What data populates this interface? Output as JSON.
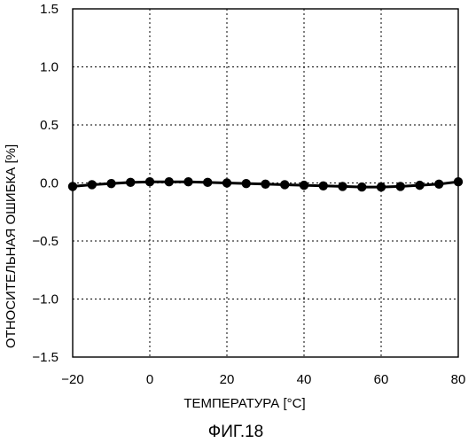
{
  "figure": {
    "caption": "ФИГ.18"
  },
  "chart_data": {
    "type": "line",
    "title": "",
    "xlabel": "ТЕМПЕРАТУРА [°C]",
    "ylabel": "ОТНОСИТЕЛЬНАЯ ОШИБКА [%]",
    "xlim": [
      -20,
      80
    ],
    "ylim": [
      -1.5,
      1.5
    ],
    "x_ticks": [
      -20,
      0,
      20,
      40,
      60,
      80
    ],
    "y_ticks": [
      1.5,
      1.0,
      0.5,
      0.0,
      -0.5,
      -1.0,
      -1.5
    ],
    "x_tick_labels": [
      "−20",
      "0",
      "20",
      "40",
      "60",
      "80"
    ],
    "y_tick_labels": [
      "1.5",
      "1.0",
      "0.5",
      "0.0",
      "−0.5",
      "−1.0",
      "−1.5"
    ],
    "grid": true,
    "legend": "none",
    "series": [
      {
        "x": [
          -20,
          -15,
          -10,
          -5,
          0,
          5,
          10,
          15,
          20,
          25,
          30,
          35,
          40,
          45,
          50,
          55,
          60,
          65,
          70,
          75,
          80
        ],
        "y": [
          -0.03,
          -0.015,
          -0.005,
          0.005,
          0.01,
          0.01,
          0.01,
          0.005,
          0.0,
          -0.005,
          -0.01,
          -0.015,
          -0.02,
          -0.025,
          -0.03,
          -0.035,
          -0.035,
          -0.03,
          -0.02,
          -0.01,
          0.01
        ],
        "color": "#000000",
        "marker": "circle"
      }
    ]
  }
}
